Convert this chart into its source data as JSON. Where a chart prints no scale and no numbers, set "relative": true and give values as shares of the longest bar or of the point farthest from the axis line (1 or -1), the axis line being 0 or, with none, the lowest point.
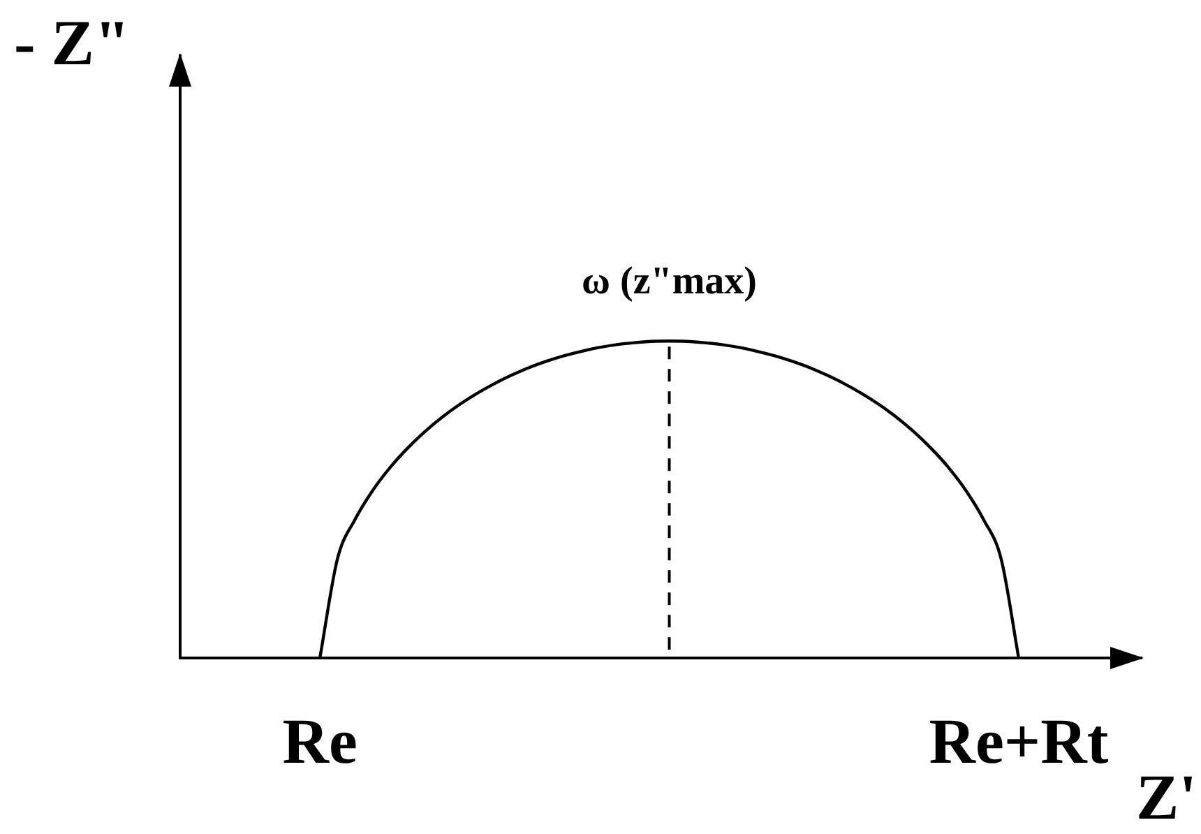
{
  "chart_data": {
    "type": "line",
    "relative": true,
    "xlabel": "Z'",
    "ylabel": "- Z\"",
    "tick_labels": "x",
    "categories": [
      null,
      null,
      null,
      null,
      null,
      null,
      null,
      null,
      "Re",
      null,
      null,
      null,
      null,
      null,
      null,
      null,
      null,
      null,
      null,
      null,
      null,
      null,
      null,
      null,
      null,
      null,
      null,
      null,
      null,
      null,
      null,
      null,
      null,
      null,
      null,
      null,
      null,
      null,
      null,
      null,
      null,
      null,
      null,
      null,
      null,
      null,
      null,
      null,
      "Re+Rt",
      null,
      null,
      null,
      null,
      null,
      null,
      null
    ],
    "values": [
      null,
      null,
      null,
      null,
      null,
      null,
      null,
      null,
      0,
      0.312,
      0.436,
      0.527,
      0.6,
      0.661,
      0.714,
      0.76,
      0.8,
      0.835,
      0.866,
      0.893,
      0.917,
      0.937,
      0.954,
      0.968,
      0.98,
      0.989,
      0.995,
      0.999,
      1,
      0.999,
      0.995,
      0.989,
      0.98,
      0.968,
      0.954,
      0.937,
      0.917,
      0.893,
      0.866,
      0.835,
      0.8,
      0.76,
      0.714,
      0.661,
      0.6,
      0.527,
      0.436,
      0.312,
      0,
      null,
      null,
      null,
      null,
      null,
      null,
      null
    ],
    "color": "#000000",
    "annotations": [
      {
        "text": "ω (z\"max)",
        "y": 1
      }
    ]
  }
}
